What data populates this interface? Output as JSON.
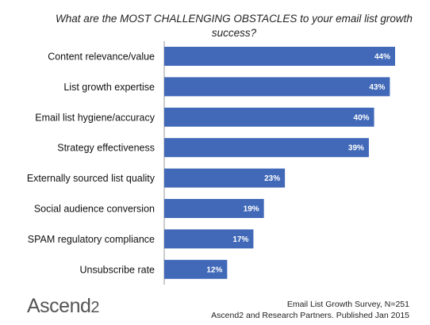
{
  "title_line1": "What are the MOST CHALLENGING OBSTACLES to your email list growth",
  "title_line2": "success?",
  "chart_data": {
    "type": "bar",
    "orientation": "horizontal",
    "title": "What are the MOST CHALLENGING OBSTACLES to your email list growth success?",
    "categories": [
      "Content relevance/value",
      "List growth expertise",
      "Email list hygiene/accuracy",
      "Strategy effectiveness",
      "Externally sourced list quality",
      "Social audience conversion",
      "SPAM regulatory compliance",
      "Unsubscribe rate"
    ],
    "values": [
      44,
      43,
      40,
      39,
      23,
      19,
      17,
      12
    ],
    "value_labels": [
      "44%",
      "43%",
      "40%",
      "39%",
      "23%",
      "19%",
      "17%",
      "12%"
    ],
    "xlim": [
      0,
      44
    ],
    "bar_color": "#4169B8",
    "grid": false,
    "legend": "none"
  },
  "logo": {
    "main": "Ascend",
    "suffix": "2"
  },
  "source_line1": "Email List Growth Survey, N=251",
  "source_line2": "Ascend2 and Research Partners. Published Jan 2015"
}
